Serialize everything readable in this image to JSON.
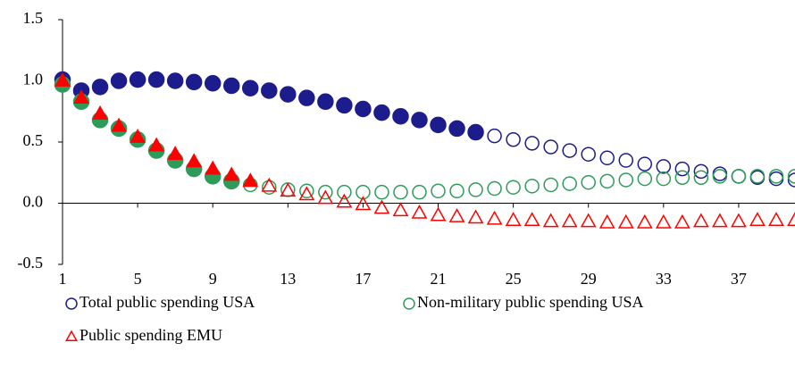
{
  "chart_data": {
    "type": "scatter",
    "x": [
      1,
      2,
      3,
      4,
      5,
      6,
      7,
      8,
      9,
      10,
      11,
      12,
      13,
      14,
      15,
      16,
      17,
      18,
      19,
      20,
      21,
      22,
      23,
      24,
      25,
      26,
      27,
      28,
      29,
      30,
      31,
      32,
      33,
      34,
      35,
      36,
      37,
      38,
      39,
      40
    ],
    "xlim": [
      1,
      40
    ],
    "xticks": [
      1,
      5,
      9,
      13,
      17,
      21,
      25,
      29,
      33,
      37
    ],
    "ylim": [
      -0.5,
      1.5
    ],
    "yticks": [
      1.5,
      {
        "value": 1.0,
        "label": "1.0"
      },
      0.5,
      {
        "value": 0.0,
        "label": "0.0"
      },
      -0.5
    ],
    "series": [
      {
        "name": "Total public spending USA",
        "color": "#1c1c8c",
        "marker": "circle",
        "filled_count": 23,
        "values": [
          1.01,
          0.92,
          0.95,
          1.0,
          1.01,
          1.01,
          1.0,
          0.99,
          0.98,
          0.96,
          0.94,
          0.92,
          0.89,
          0.86,
          0.83,
          0.8,
          0.77,
          0.74,
          0.71,
          0.68,
          0.64,
          0.61,
          0.58,
          0.55,
          0.52,
          0.49,
          0.46,
          0.43,
          0.4,
          0.37,
          0.35,
          0.32,
          0.3,
          0.28,
          0.26,
          0.24,
          0.22,
          0.21,
          0.2,
          0.19
        ]
      },
      {
        "name": "Non-military public spending USA",
        "color": "#2e9b5a",
        "marker": "circle",
        "filled_count": 10,
        "values": [
          0.97,
          0.83,
          0.68,
          0.61,
          0.52,
          0.43,
          0.35,
          0.28,
          0.22,
          0.18,
          0.15,
          0.13,
          0.11,
          0.1,
          0.09,
          0.09,
          0.09,
          0.09,
          0.09,
          0.09,
          0.1,
          0.1,
          0.11,
          0.12,
          0.13,
          0.14,
          0.15,
          0.16,
          0.17,
          0.18,
          0.19,
          0.2,
          0.2,
          0.21,
          0.21,
          0.22,
          0.22,
          0.22,
          0.22,
          0.22
        ]
      },
      {
        "name": "Public spending EMU",
        "color": "#ff0000",
        "marker": "triangle",
        "filled_count": 11,
        "values": [
          1.0,
          0.86,
          0.73,
          0.63,
          0.54,
          0.47,
          0.4,
          0.34,
          0.28,
          0.23,
          0.18,
          0.14,
          0.1,
          0.07,
          0.04,
          0.01,
          -0.01,
          -0.04,
          -0.06,
          -0.08,
          -0.1,
          -0.11,
          -0.12,
          -0.13,
          -0.14,
          -0.14,
          -0.15,
          -0.15,
          -0.15,
          -0.16,
          -0.16,
          -0.16,
          -0.16,
          -0.16,
          -0.15,
          -0.15,
          -0.15,
          -0.14,
          -0.14,
          -0.14
        ]
      }
    ]
  }
}
